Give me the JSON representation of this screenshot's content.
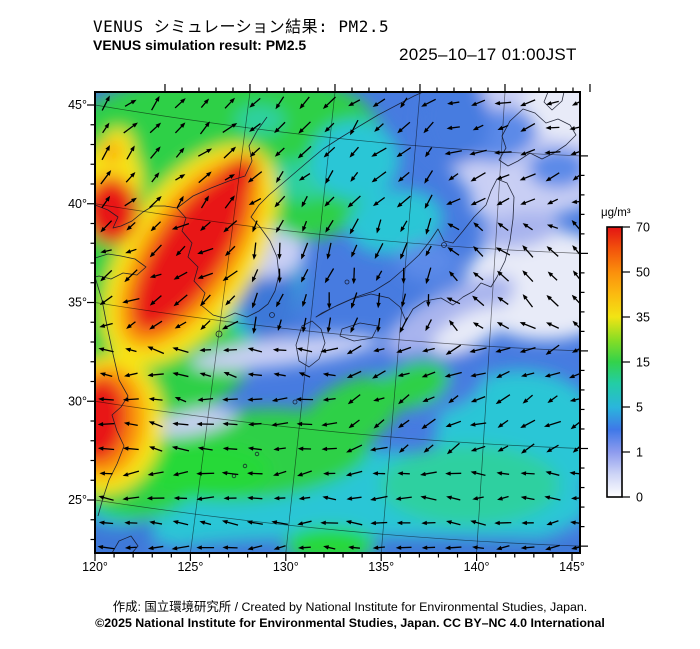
{
  "header": {
    "title_jp": "VENUS シミュレーション結果: PM2.5",
    "title_en": "VENUS simulation result: PM2.5",
    "timestamp": "2025–10–17 01:00JST"
  },
  "footer": {
    "credit_line1": "作成: 国立環境研究所 / Created by National Institute for Environmental Studies, Japan.",
    "credit_line2": "©2025 National Institute for Environmental Studies, Japan. CC BY–NC 4.0 International"
  },
  "map": {
    "variable": "PM2.5 surface concentration",
    "projection": "conic, graticule every 5 degrees",
    "degree_symbol": "°",
    "lon_major_ticks": [
      120,
      125,
      130,
      135,
      140,
      145
    ],
    "lat_major_ticks": [
      45,
      40,
      35,
      30,
      25
    ],
    "minor_tick_step_deg": 1,
    "lon_range": [
      120,
      145.4
    ],
    "lat_range": [
      22.3,
      45.6
    ],
    "wind": {
      "style": "black wind-vector arrows on ~1.25 degree grid",
      "pattern": "northeastward over NE China; southwestward over NE Japan/Okhotsk; southward over the Sea of Japan; westward (easterlies) over the East China Sea and Pacific south of 30N"
    },
    "pm25_regions": [
      {
        "area": "NE China plume, Bohai–Liaodong–Korea Bay (121–127E, 35–42N)",
        "pm25_ugm3": "50–70+",
        "shade": "red/orange"
      },
      {
        "area": "Shanghai–Zhejiang coast (120–122E, 29–32N)",
        "pm25_ugm3": "50–70",
        "shade": "red"
      },
      {
        "area": "NE Asia inland and East China Sea (broad)",
        "pm25_ugm3": "15–35",
        "shade": "green"
      },
      {
        "area": "Pacific south of 30N",
        "pm25_ugm3": "5–15",
        "shade": "cyan"
      },
      {
        "area": "Yellow Sea, Sea of Japan, Korea Strait",
        "pm25_ugm3": "1–5",
        "shade": "blue"
      },
      {
        "area": "Honshu, Hokkaido, Okhotsk quadrant",
        "pm25_ugm3": "0–1",
        "shade": "pale violet / white"
      }
    ]
  },
  "colorbar": {
    "unit": "μg/m³",
    "tick_values": [
      0,
      1,
      5,
      15,
      35,
      50,
      70
    ],
    "gradient_stops": [
      {
        "t": 0.0,
        "color": "#ffffff"
      },
      {
        "t": 0.085,
        "color": "#cdd4f6"
      },
      {
        "t": 0.167,
        "color": "#8d9bee"
      },
      {
        "t": 0.25,
        "color": "#3f78e8"
      },
      {
        "t": 0.333,
        "color": "#2ab6dc"
      },
      {
        "t": 0.42,
        "color": "#23cda6"
      },
      {
        "t": 0.5,
        "color": "#33d24b"
      },
      {
        "t": 0.58,
        "color": "#86dd25"
      },
      {
        "t": 0.667,
        "color": "#f2e414"
      },
      {
        "t": 0.75,
        "color": "#fbbb10"
      },
      {
        "t": 0.833,
        "color": "#fb8f0c"
      },
      {
        "t": 0.92,
        "color": "#f2520c"
      },
      {
        "t": 1.0,
        "color": "#e31414"
      }
    ]
  },
  "palette": {
    "red": "#e81414",
    "orange": "#fb9210",
    "yellow": "#f8e412",
    "green": "#2ed047",
    "bright_green": "#26d938",
    "teal": "#2fd0a0",
    "cyan": "#2cc6d6",
    "sea_blue": "#477be0",
    "deep_blue": "#3e78d8",
    "mid_blue": "#5b8ae8",
    "periwinkle": "#a8b4ee",
    "pale_violet": "#c9cff4",
    "near_white": "#e8ebf8",
    "coast": "#14182a",
    "arrow": "#000000",
    "frame": "#000000"
  }
}
